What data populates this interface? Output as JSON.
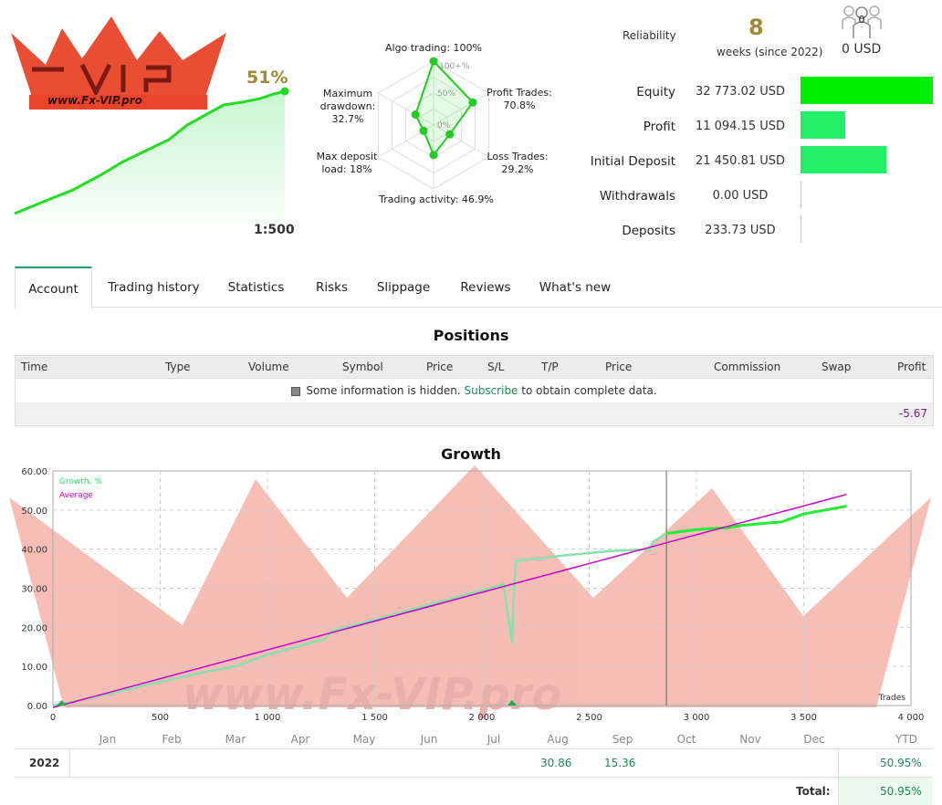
{
  "summary": {
    "logo_text": "www.Fx-VIP.pro",
    "logo_letters": "VIP",
    "growth_percent": "51%",
    "leverage": "1:500"
  },
  "radar": {
    "algo_trading": "Algo trading: 100%",
    "profit_trades_label": "Profit Trades:",
    "profit_trades_value": "70.8%",
    "loss_trades_label": "Loss Trades:",
    "loss_trades_value": "29.2%",
    "trading_activity": "Trading activity: 46.9%",
    "max_deposit_load_label": "Max deposit",
    "max_deposit_load_label2": "load: 18%",
    "max_drawdown_label1": "Maximum",
    "max_drawdown_label2": "drawdown:",
    "max_drawdown_value": "32.7%",
    "ring_100": "100+%",
    "ring_50": "50%",
    "ring_0": "0%",
    "values": {
      "algo": 1.0,
      "profit": 0.708,
      "loss": 0.292,
      "activity": 0.469,
      "load": 0.18,
      "drawdown": 0.327
    }
  },
  "header_right": {
    "reliability_label": "Reliability",
    "weeks_number": "8",
    "weeks_text": "weeks (since 2022)",
    "subscribers_count": "0",
    "subscribers_amount": "0 USD"
  },
  "stats": [
    {
      "label": "Equity",
      "value": "32 773.02 USD",
      "bar_fraction": 1.0,
      "color": "#00ee00"
    },
    {
      "label": "Profit",
      "value": "11 094.15 USD",
      "bar_fraction": 0.34,
      "color": "#22ee66"
    },
    {
      "label": "Initial Deposit",
      "value": "21 450.81 USD",
      "bar_fraction": 0.65,
      "color": "#22ee66"
    },
    {
      "label": "Withdrawals",
      "value": "0.00 USD",
      "bar_fraction": 0.0,
      "color": "#22ee66"
    },
    {
      "label": "Deposits",
      "value": "233.73 USD",
      "bar_fraction": 0.0,
      "color": "#22ee66"
    }
  ],
  "tabs": [
    "Account",
    "Trading history",
    "Statistics",
    "Risks",
    "Slippage",
    "Reviews",
    "What's new"
  ],
  "positions": {
    "title": "Positions",
    "columns": [
      "Time",
      "Type",
      "Volume",
      "Symbol",
      "Price",
      "S/L",
      "T/P",
      "Price",
      "Commission",
      "Swap",
      "Profit"
    ],
    "hidden_text_before": "Some information is hidden.",
    "subscribe_link": "Subscribe",
    "hidden_text_after": "to obtain complete data.",
    "total_profit": "-5.67"
  },
  "growth": {
    "title": "Growth",
    "legend_growth": "Growth, %",
    "legend_average": "Average",
    "x_axis_label": "Trades",
    "y_ticks": [
      "60.00",
      "50.00",
      "40.00",
      "30.00",
      "20.00",
      "10.00",
      "0.00"
    ],
    "x_ticks": [
      "0",
      "500",
      "1 000",
      "1 500",
      "2 000",
      "2 500",
      "3 000",
      "3 500",
      "4 000"
    ],
    "colors": {
      "growth": "#22dd66",
      "average": "#cc00cc"
    }
  },
  "chart_data": {
    "type": "line",
    "title": "Growth",
    "xlabel": "Trades",
    "ylabel": "",
    "xlim": [
      0,
      4000
    ],
    "ylim": [
      0,
      60
    ],
    "series": [
      {
        "name": "Growth, %",
        "x": [
          0,
          100,
          300,
          500,
          700,
          850,
          900,
          1000,
          1200,
          1270,
          1300,
          1500,
          1700,
          1900,
          2100,
          2140,
          2150,
          2160,
          2400,
          2600,
          2780,
          2800,
          2860,
          3000,
          3150,
          3200,
          3300,
          3400,
          3500,
          3600,
          3700
        ],
        "y": [
          0,
          1,
          3.5,
          6,
          8.5,
          10,
          11,
          13,
          16,
          17,
          19,
          22,
          25,
          28,
          31,
          16,
          31,
          37,
          38.5,
          39.5,
          40,
          42,
          44,
          45,
          45.5,
          46,
          46.5,
          47,
          49,
          50,
          51
        ]
      },
      {
        "name": "Average",
        "x": [
          0,
          3700
        ],
        "y": [
          -0.5,
          54
        ]
      }
    ]
  },
  "year_table": {
    "months": [
      "Jan",
      "Feb",
      "Mar",
      "Apr",
      "May",
      "Jun",
      "Jul",
      "Aug",
      "Sep",
      "Oct",
      "Nov",
      "Dec",
      "YTD"
    ],
    "year": "2022",
    "aug": "30.86",
    "sep": "15.36",
    "ytd": "50.95%",
    "total_label": "Total:",
    "total_value": "50.95%"
  }
}
